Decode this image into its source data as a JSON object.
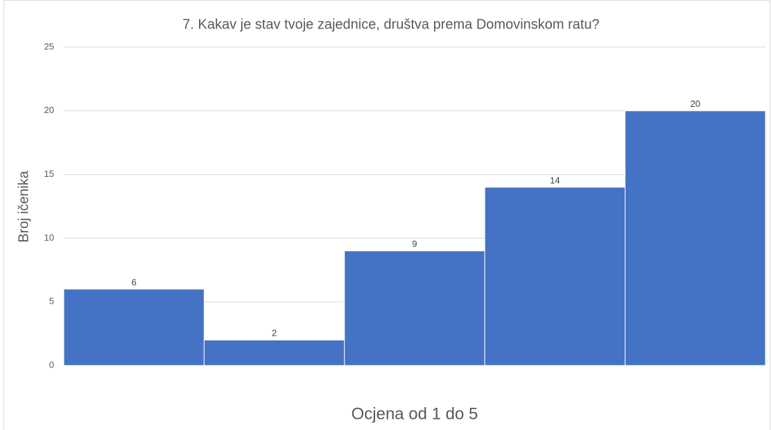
{
  "chart_data": {
    "type": "bar",
    "title": "7. Kakav je stav tvoje zajednice, društva prema Domovinskom ratu?",
    "x_label": "Ocjena od 1 do 5",
    "y_label": "Broj ičenika",
    "categories": [
      null,
      null,
      null,
      null,
      null
    ],
    "values": [
      6,
      2,
      9,
      14,
      20
    ],
    "color": "#4472c4",
    "ylim": [
      0,
      25
    ],
    "yticks": [
      0,
      5,
      10,
      15,
      20,
      25
    ],
    "grid": true
  }
}
